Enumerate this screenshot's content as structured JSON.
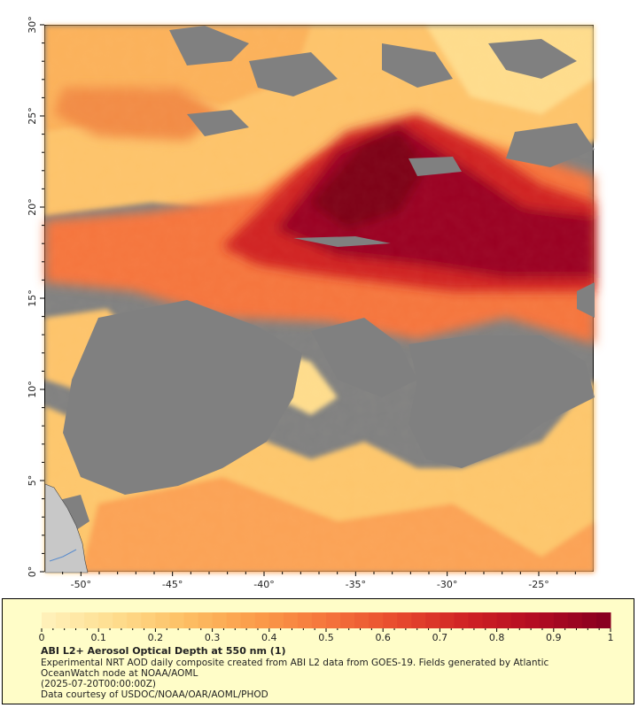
{
  "map": {
    "lat_ticks": [
      "0°",
      "5°",
      "10°",
      "15°",
      "20°",
      "25°",
      "30°"
    ],
    "lon_ticks": [
      "-50°",
      "-45°",
      "-40°",
      "-35°",
      "-30°",
      "-25°"
    ],
    "lat_range": [
      0,
      30
    ],
    "lon_range": [
      -52,
      -22
    ],
    "colors": {
      "no_data": "#808080",
      "land": "#c8c8c8"
    }
  },
  "legend": {
    "colorbar_ticks": [
      "0",
      "0.1",
      "0.2",
      "0.3",
      "0.4",
      "0.5",
      "0.6",
      "0.7",
      "0.8",
      "0.9",
      "1"
    ],
    "colorbar_range": [
      0,
      1
    ],
    "colorbar_colors": [
      "#fff0b8",
      "#fedc8c",
      "#fdbe63",
      "#fb9c4a",
      "#f5753c",
      "#e84c2e",
      "#d02324",
      "#b30c22",
      "#8a0020"
    ],
    "title": "ABI L2+ Aerosol Optical Depth at 550 nm (1)",
    "description": "Experimental NRT AOD daily composite created from ABI L2 data from GOES-19. Fields generated by Atlantic OceanWatch node at NOAA/AOML",
    "timestamp": "(2025-07-20T00:00:00Z)",
    "credit": "Data courtesy of USDOC/NOAA/OAR/AOML/PHOD"
  }
}
